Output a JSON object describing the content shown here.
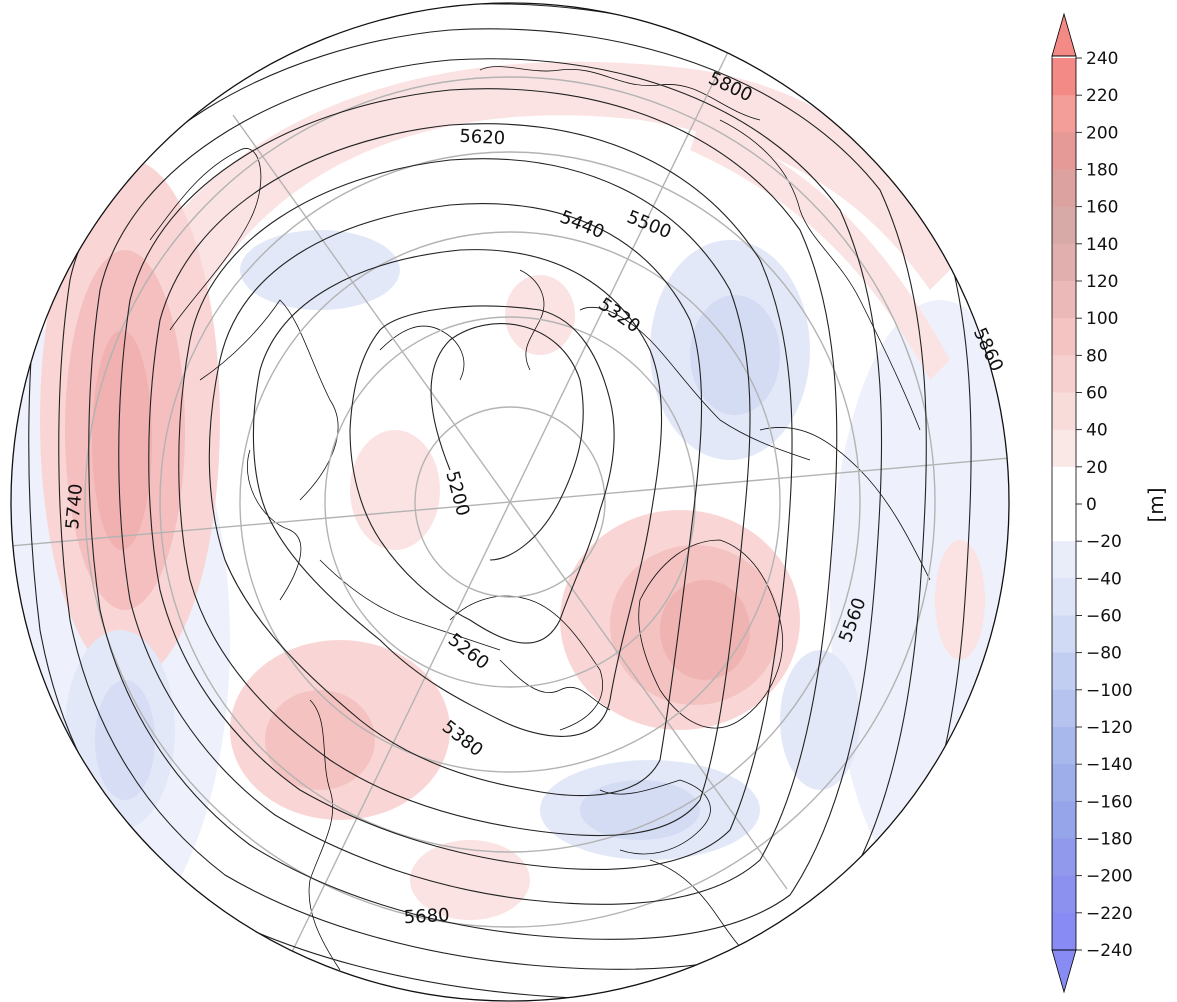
{
  "map": {
    "contour_labels": [
      {
        "text": "5800"
      },
      {
        "text": "5620"
      },
      {
        "text": "5440"
      },
      {
        "text": "5500"
      },
      {
        "text": "5320"
      },
      {
        "text": "5860"
      },
      {
        "text": "5740"
      },
      {
        "text": "5200"
      },
      {
        "text": "5560"
      },
      {
        "text": "5260"
      },
      {
        "text": "5380"
      },
      {
        "text": "5680"
      }
    ],
    "anomaly_colors": {
      "positive": "#f08080",
      "negative": "#8a8cf5",
      "contour": "#222222",
      "graticule": "#b3b3b3",
      "coast": "#111111"
    }
  },
  "colorbar": {
    "unit_label": "[m]",
    "ticks": [
      "240",
      "220",
      "200",
      "180",
      "160",
      "140",
      "120",
      "100",
      "80",
      "60",
      "40",
      "20",
      "0",
      "−20",
      "−40",
      "−60",
      "−80",
      "−100",
      "−120",
      "−140",
      "−160",
      "−180",
      "−200",
      "−220",
      "−240"
    ],
    "colors": [
      "#f38a86",
      "#f49e9a",
      "#e69a97",
      "#dca2a0",
      "#d7a9a7",
      "#e1b0ae",
      "#ebb9b7",
      "#f3c4c2",
      "#f6d0ce",
      "#f8dcda",
      "#fae8e7",
      "#ffffff",
      "#ffffff",
      "#e9edf9",
      "#dde4f7",
      "#d0daf4",
      "#c2cef1",
      "#b5c3ee",
      "#a9b8ec",
      "#9eaeea",
      "#96a4ea",
      "#9199ec",
      "#8c90ef",
      "#888bf3"
    ]
  }
}
